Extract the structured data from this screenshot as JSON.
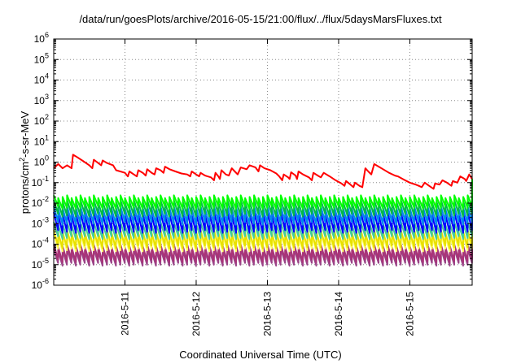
{
  "chart_data": {
    "type": "line",
    "title": "/data/run/goesPlots/archive/2016-05-15/21:00/flux/../flux/5daysMarsFluxes.txt",
    "xlabel": "Coordinated Universal Time (UTC)",
    "ylabel_base": "protons/cm",
    "ylabel_sup": "2",
    "ylabel_rest": "-s-sr-MeV",
    "y_scale": "log",
    "ylim": [
      1e-06,
      1000000.0
    ],
    "y_tick_exponents": [
      -6,
      -5,
      -4,
      -3,
      -2,
      -1,
      0,
      1,
      2,
      3,
      4,
      5,
      6
    ],
    "xlim": [
      "2016-05-10T00:00",
      "2016-05-15T21:00"
    ],
    "x_ticks": [
      {
        "t": "2016-05-11T00:00",
        "label": "2016-5-11"
      },
      {
        "t": "2016-05-12T00:00",
        "label": "2016-5-12"
      },
      {
        "t": "2016-05-13T00:00",
        "label": "2016-5-13"
      },
      {
        "t": "2016-05-14T00:00",
        "label": "2016-5-14"
      },
      {
        "t": "2016-05-15T00:00",
        "label": "2016-5-15"
      }
    ],
    "grid": true,
    "series": [
      {
        "color": "#ff0000",
        "kind": "trace",
        "points": [
          [
            "2016-05-10T00:00",
            0.5
          ],
          [
            "2016-05-10T01:30",
            0.8
          ],
          [
            "2016-05-10T03:00",
            0.5
          ],
          [
            "2016-05-10T04:30",
            0.7
          ],
          [
            "2016-05-10T06:00",
            0.5
          ],
          [
            "2016-05-10T06:30",
            2.3
          ],
          [
            "2016-05-10T08:00",
            1.7
          ],
          [
            "2016-05-10T10:00",
            1.1
          ],
          [
            "2016-05-10T12:00",
            0.7
          ],
          [
            "2016-05-10T13:00",
            0.5
          ],
          [
            "2016-05-10T13:30",
            1.3
          ],
          [
            "2016-05-10T15:00",
            0.9
          ],
          [
            "2016-05-10T16:00",
            0.7
          ],
          [
            "2016-05-10T16:30",
            1.2
          ],
          [
            "2016-05-10T18:00",
            0.9
          ],
          [
            "2016-05-10T20:00",
            0.7
          ],
          [
            "2016-05-10T21:00",
            0.4
          ],
          [
            "2016-05-11T00:00",
            0.3
          ],
          [
            "2016-05-11T01:00",
            0.2
          ],
          [
            "2016-05-11T01:30",
            0.35
          ],
          [
            "2016-05-11T03:00",
            0.25
          ],
          [
            "2016-05-11T04:00",
            0.2
          ],
          [
            "2016-05-11T04:30",
            0.4
          ],
          [
            "2016-05-11T06:00",
            0.3
          ],
          [
            "2016-05-11T07:00",
            0.22
          ],
          [
            "2016-05-11T07:30",
            0.45
          ],
          [
            "2016-05-11T09:00",
            0.3
          ],
          [
            "2016-05-11T10:00",
            0.25
          ],
          [
            "2016-05-11T10:30",
            0.5
          ],
          [
            "2016-05-11T12:00",
            0.4
          ],
          [
            "2016-05-11T13:00",
            0.3
          ],
          [
            "2016-05-11T13:30",
            0.6
          ],
          [
            "2016-05-11T15:00",
            0.45
          ],
          [
            "2016-05-11T17:00",
            0.35
          ],
          [
            "2016-05-11T19:00",
            0.28
          ],
          [
            "2016-05-11T21:00",
            0.25
          ],
          [
            "2016-05-11T22:00",
            0.2
          ],
          [
            "2016-05-11T22:30",
            0.35
          ],
          [
            "2016-05-12T00:00",
            0.25
          ],
          [
            "2016-05-12T01:00",
            0.2
          ],
          [
            "2016-05-12T01:30",
            0.3
          ],
          [
            "2016-05-12T03:00",
            0.22
          ],
          [
            "2016-05-12T05:00",
            0.18
          ],
          [
            "2016-05-12T06:00",
            0.13
          ],
          [
            "2016-05-12T06:30",
            0.3
          ],
          [
            "2016-05-12T07:30",
            0.2
          ],
          [
            "2016-05-12T08:00",
            0.15
          ],
          [
            "2016-05-12T08:30",
            0.4
          ],
          [
            "2016-05-12T10:00",
            0.25
          ],
          [
            "2016-05-12T11:00",
            0.22
          ],
          [
            "2016-05-12T12:00",
            0.5
          ],
          [
            "2016-05-12T13:00",
            0.35
          ],
          [
            "2016-05-12T14:00",
            0.25
          ],
          [
            "2016-05-12T15:00",
            0.55
          ],
          [
            "2016-05-12T17:00",
            0.45
          ],
          [
            "2016-05-12T18:00",
            0.7
          ],
          [
            "2016-05-12T20:00",
            0.55
          ],
          [
            "2016-05-12T21:00",
            0.35
          ],
          [
            "2016-05-12T21:30",
            0.7
          ],
          [
            "2016-05-12T23:00",
            0.5
          ],
          [
            "2016-05-13T01:00",
            0.4
          ],
          [
            "2016-05-13T03:00",
            0.28
          ],
          [
            "2016-05-13T04:00",
            0.2
          ],
          [
            "2016-05-13T05:00",
            0.13
          ],
          [
            "2016-05-13T05:30",
            0.25
          ],
          [
            "2016-05-13T07:00",
            0.18
          ],
          [
            "2016-05-13T07:30",
            0.15
          ],
          [
            "2016-05-13T08:00",
            0.32
          ],
          [
            "2016-05-13T09:30",
            0.22
          ],
          [
            "2016-05-13T10:00",
            0.15
          ],
          [
            "2016-05-13T10:30",
            0.35
          ],
          [
            "2016-05-13T12:00",
            0.25
          ],
          [
            "2016-05-13T14:00",
            0.18
          ],
          [
            "2016-05-13T15:00",
            0.13
          ],
          [
            "2016-05-13T15:30",
            0.3
          ],
          [
            "2016-05-13T17:00",
            0.22
          ],
          [
            "2016-05-13T18:00",
            0.18
          ],
          [
            "2016-05-13T19:00",
            0.3
          ],
          [
            "2016-05-13T21:00",
            0.2
          ],
          [
            "2016-05-13T23:00",
            0.13
          ],
          [
            "2016-05-14T01:00",
            0.09
          ],
          [
            "2016-05-14T02:00",
            0.07
          ],
          [
            "2016-05-14T02:30",
            0.12
          ],
          [
            "2016-05-14T04:00",
            0.08
          ],
          [
            "2016-05-14T05:00",
            0.06
          ],
          [
            "2016-05-14T05:30",
            0.1
          ],
          [
            "2016-05-14T07:00",
            0.07
          ],
          [
            "2016-05-14T08:00",
            0.06
          ],
          [
            "2016-05-14T09:00",
            0.5
          ],
          [
            "2016-05-14T10:00",
            0.35
          ],
          [
            "2016-05-14T11:00",
            0.25
          ],
          [
            "2016-05-14T12:00",
            0.8
          ],
          [
            "2016-05-14T13:30",
            0.6
          ],
          [
            "2016-05-14T15:00",
            0.45
          ],
          [
            "2016-05-14T17:00",
            0.3
          ],
          [
            "2016-05-14T19:00",
            0.22
          ],
          [
            "2016-05-14T20:00",
            0.2
          ],
          [
            "2016-05-14T22:00",
            0.14
          ],
          [
            "2016-05-15T00:00",
            0.1
          ],
          [
            "2016-05-15T02:00",
            0.08
          ],
          [
            "2016-05-15T03:00",
            0.07
          ],
          [
            "2016-05-15T04:00",
            0.06
          ],
          [
            "2016-05-15T05:00",
            0.1
          ],
          [
            "2016-05-15T06:30",
            0.07
          ],
          [
            "2016-05-15T08:00",
            0.05
          ],
          [
            "2016-05-15T08:30",
            0.09
          ],
          [
            "2016-05-15T10:00",
            0.08
          ],
          [
            "2016-05-15T11:00",
            0.13
          ],
          [
            "2016-05-15T12:30",
            0.1
          ],
          [
            "2016-05-15T14:00",
            0.07
          ],
          [
            "2016-05-15T14:30",
            0.12
          ],
          [
            "2016-05-15T16:00",
            0.1
          ],
          [
            "2016-05-15T17:00",
            0.2
          ],
          [
            "2016-05-15T18:30",
            0.15
          ],
          [
            "2016-05-15T19:00",
            0.12
          ],
          [
            "2016-05-15T20:00",
            0.25
          ],
          [
            "2016-05-15T21:00",
            0.15
          ]
        ]
      },
      {
        "color": "#00ff00",
        "kind": "sawtooth",
        "peak": 0.02,
        "trough": 0.006,
        "last": 0.15
      },
      {
        "color": "#00bb44",
        "kind": "sawtooth",
        "peak": 0.012,
        "trough": 0.0025,
        "last": 0.03
      },
      {
        "color": "#0088ee",
        "kind": "sawtooth",
        "peak": 0.006,
        "trough": 0.001,
        "last": 0.012
      },
      {
        "color": "#0000ff",
        "kind": "sawtooth",
        "peak": 0.003,
        "trough": 0.0004,
        "last": 0.006
      },
      {
        "color": "#44cc99",
        "kind": "sawtooth",
        "peak": 0.001,
        "trough": 0.0002,
        "last": 0.002
      },
      {
        "color": "#e8e000",
        "kind": "sawtooth",
        "peak": 0.0004,
        "trough": 7e-05,
        "last": 0.0006
      },
      {
        "color": "#ffff66",
        "kind": "sawtooth",
        "peak": 0.00025,
        "trough": 5e-05,
        "last": 0.0004
      },
      {
        "color": "#aa3377",
        "kind": "sawtooth",
        "peak": 8e-05,
        "trough": 1.5e-05,
        "last": 0.0001
      },
      {
        "color": "#9a4488",
        "kind": "sawtooth",
        "peak": 5e-05,
        "trough": 1e-05,
        "last": 7e-05
      }
    ]
  }
}
